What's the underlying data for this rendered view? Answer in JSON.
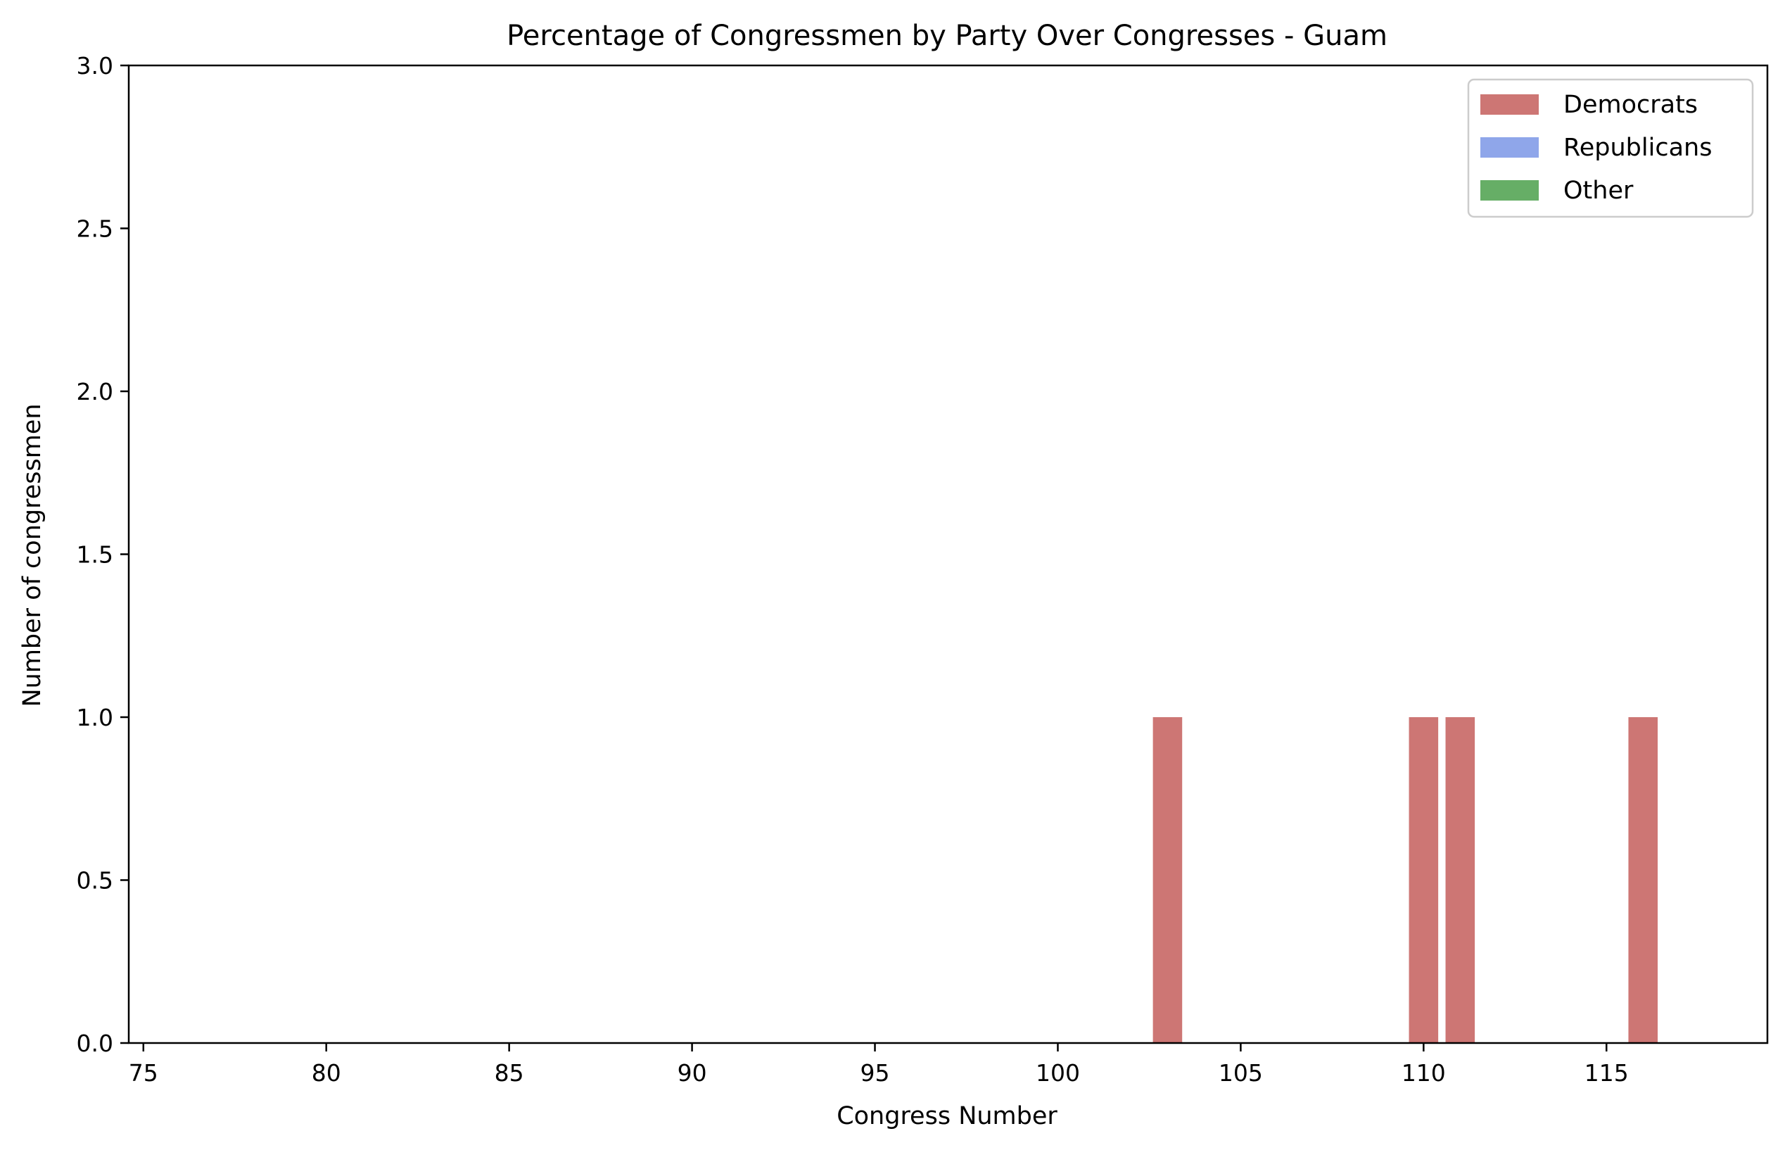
{
  "chart_data": {
    "type": "bar",
    "title": "Percentage of Congressmen by Party Over Congresses - Guam",
    "xlabel": "Congress Number",
    "ylabel": "Number of congressmen",
    "xlim": [
      74.6,
      119.4
    ],
    "ylim": [
      0,
      3
    ],
    "x_ticks": [
      75,
      80,
      85,
      90,
      95,
      100,
      105,
      110,
      115
    ],
    "y_ticks": [
      0,
      0.5,
      1,
      1.5,
      2,
      2.5,
      3
    ],
    "y_tick_labels": [
      "0.0",
      "0.5",
      "1.0",
      "1.5",
      "2.0",
      "2.5",
      "3.0"
    ],
    "bar_width": 0.8,
    "stacked": true,
    "grid": false,
    "legend_position": "top-right",
    "x": [
      103,
      110,
      111,
      116
    ],
    "series": [
      {
        "name": "Democrats",
        "color": "#cd7674",
        "values": [
          1,
          1,
          1,
          1
        ]
      },
      {
        "name": "Republicans",
        "color": "#8fa6ea",
        "values": [
          0,
          0,
          0,
          0
        ]
      },
      {
        "name": "Other",
        "color": "#66ae66",
        "values": [
          0,
          0,
          0,
          0
        ]
      }
    ]
  }
}
